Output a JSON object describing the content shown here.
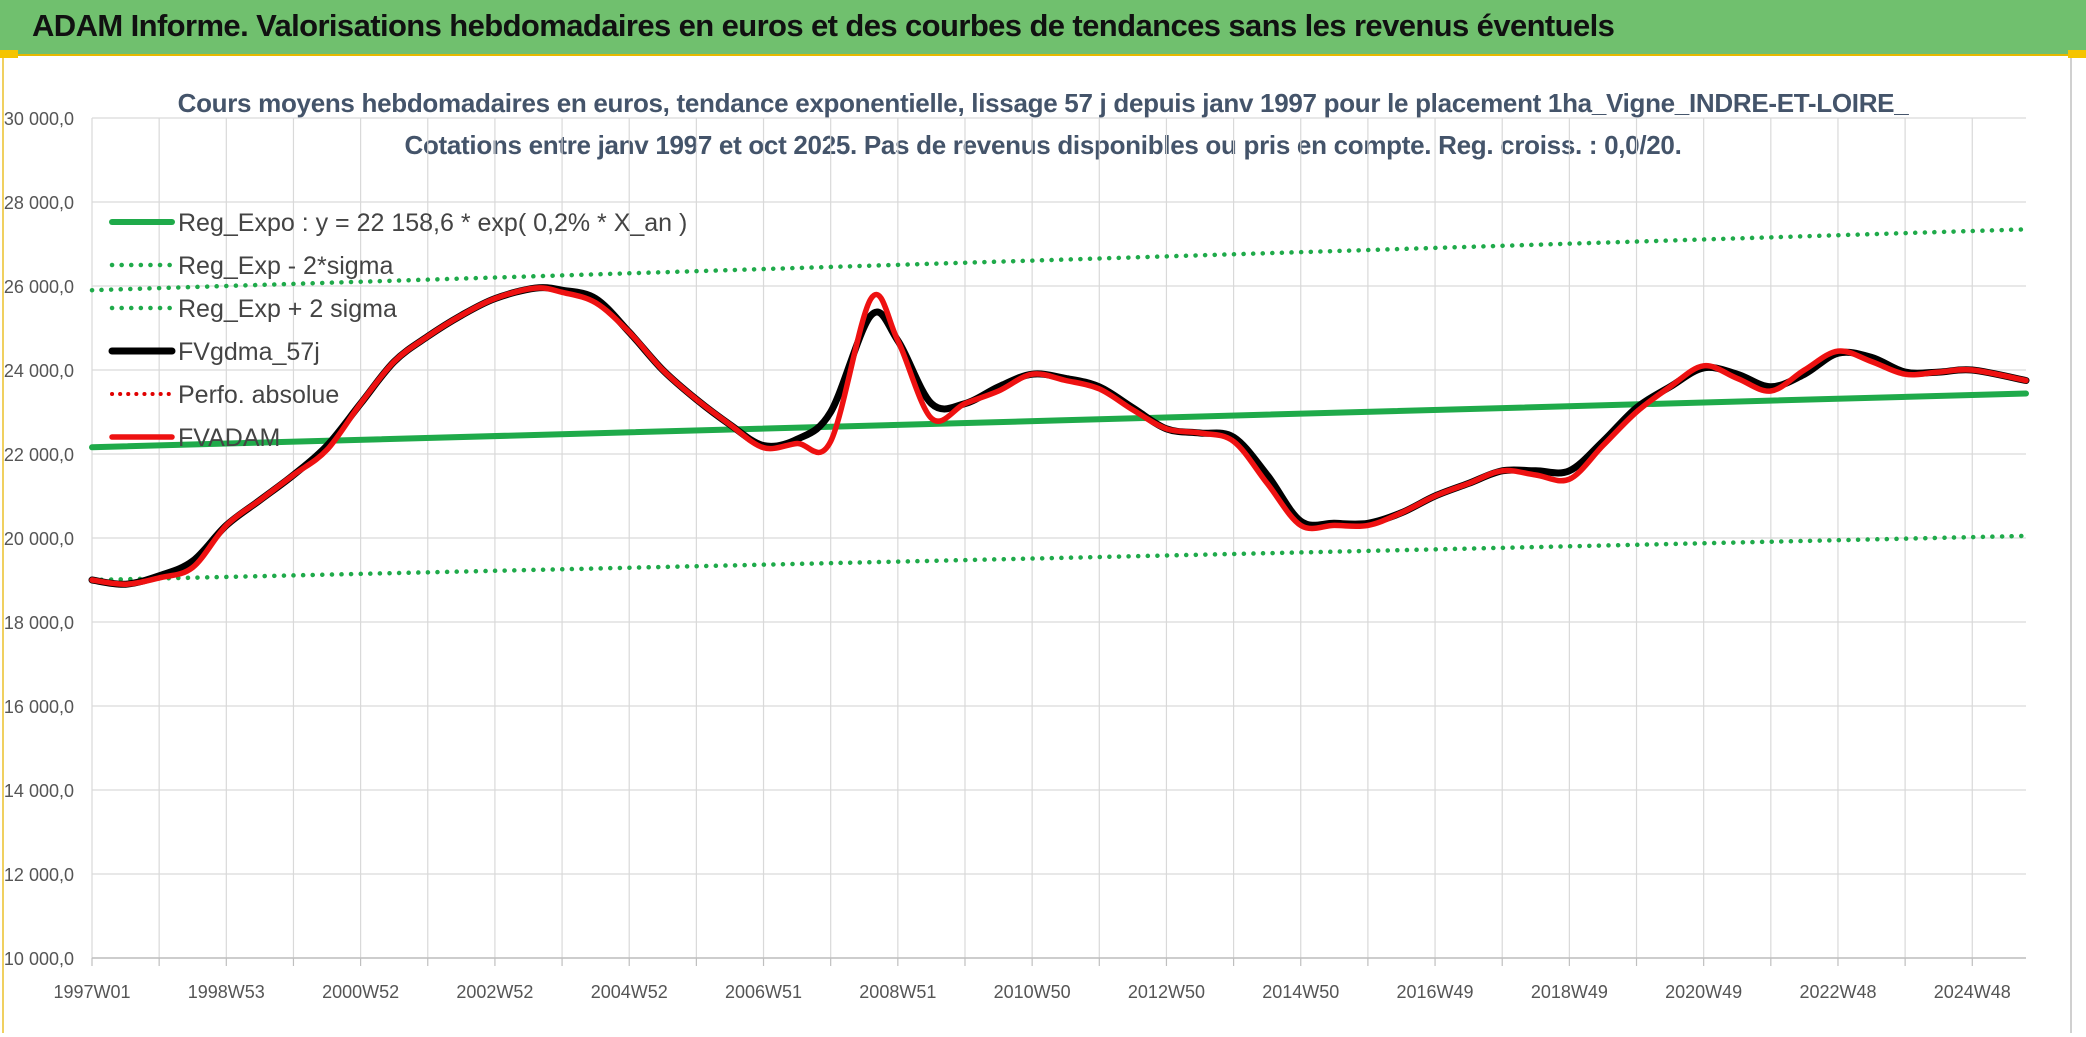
{
  "banner": {
    "title": "ADAM Informe. Valorisations hebdomadaires en euros et des courbes de tendances sans les revenus éventuels"
  },
  "colors": {
    "banner_bg": "#70c06e",
    "reg_expo": "#1faa4a",
    "fvgdma": "#000000",
    "perfo": "#e00000",
    "fvadam": "#ee1111",
    "title_text": "#44546a"
  },
  "chart_data": {
    "type": "line",
    "title": "Cours moyens hebdomadaires en euros, tendance exponentielle, lissage 57 j depuis janv 1997 pour le placement 1ha_Vigne_INDRE-ET-LOIRE_",
    "subtitle": "Cotations entre janv 1997 et oct 2025. Pas de revenus disponibles ou pris en compte. Reg. croiss. : 0,0/20.",
    "xlabel": "",
    "ylabel": "",
    "ylim": [
      10000,
      30000
    ],
    "yticks": [
      "10 000,0",
      "12 000,0",
      "14 000,0",
      "16 000,0",
      "18 000,0",
      "20 000,0",
      "22 000,0",
      "24 000,0",
      "26 000,0",
      "28 000,0",
      "30 000,0"
    ],
    "xlim": [
      1997.0,
      2025.8
    ],
    "xticks": [
      {
        "label": "1997W01",
        "x": 1997.0
      },
      {
        "label": "1998W53",
        "x": 1999.0
      },
      {
        "label": "2000W52",
        "x": 2001.0
      },
      {
        "label": "2002W52",
        "x": 2003.0
      },
      {
        "label": "2004W52",
        "x": 2005.0
      },
      {
        "label": "2006W51",
        "x": 2007.0
      },
      {
        "label": "2008W51",
        "x": 2009.0
      },
      {
        "label": "2010W50",
        "x": 2011.0
      },
      {
        "label": "2012W50",
        "x": 2013.0
      },
      {
        "label": "2014W50",
        "x": 2015.0
      },
      {
        "label": "2016W49",
        "x": 2017.0
      },
      {
        "label": "2018W49",
        "x": 2019.0
      },
      {
        "label": "2020W49",
        "x": 2021.0
      },
      {
        "label": "2022W48",
        "x": 2023.0
      },
      {
        "label": "2024W48",
        "x": 2025.0
      }
    ],
    "grid": true,
    "legend_position": "top-left",
    "series": [
      {
        "key": "reg_expo",
        "name": "Reg_Expo : y = 22 158,6 * exp( 0,2% *  X_an )",
        "style": "solid-thick",
        "x": [
          1997.0,
          2025.8
        ],
        "y": [
          22160,
          23440
        ]
      },
      {
        "key": "reg_minus",
        "name": "Reg_Exp - 2*sigma",
        "style": "dotted",
        "x": [
          1997.0,
          2025.8
        ],
        "y": [
          19000,
          20050
        ]
      },
      {
        "key": "reg_plus",
        "name": "Reg_Exp + 2 sigma",
        "style": "dotted",
        "x": [
          1997.0,
          2025.8
        ],
        "y": [
          25900,
          27350
        ]
      },
      {
        "key": "fvgdma",
        "name": "FVgdma_57j",
        "style": "solid",
        "x": [
          1997.0,
          1997.5,
          1998.0,
          1998.5,
          1999.0,
          1999.5,
          2000.0,
          2000.5,
          2001.0,
          2001.5,
          2002.0,
          2002.5,
          2003.0,
          2003.6,
          2004.0,
          2004.5,
          2005.0,
          2005.5,
          2006.0,
          2006.5,
          2007.0,
          2007.5,
          2008.0,
          2008.6,
          2009.0,
          2009.5,
          2010.0,
          2010.5,
          2011.0,
          2011.5,
          2012.0,
          2012.5,
          2013.0,
          2013.5,
          2014.0,
          2014.5,
          2015.0,
          2015.5,
          2016.0,
          2016.5,
          2017.0,
          2017.5,
          2018.0,
          2018.5,
          2019.0,
          2019.5,
          2020.0,
          2020.5,
          2021.0,
          2021.5,
          2022.0,
          2022.5,
          2023.0,
          2023.5,
          2024.0,
          2024.5,
          2025.0,
          2025.8
        ],
        "y": [
          19000,
          18900,
          19100,
          19450,
          20300,
          20900,
          21500,
          22200,
          23200,
          24200,
          24800,
          25300,
          25700,
          25950,
          25900,
          25700,
          24900,
          24000,
          23300,
          22700,
          22200,
          22350,
          23000,
          25300,
          24700,
          23200,
          23200,
          23600,
          23900,
          23800,
          23600,
          23100,
          22600,
          22500,
          22400,
          21500,
          20400,
          20350,
          20350,
          20600,
          21000,
          21300,
          21600,
          21600,
          21600,
          22300,
          23100,
          23600,
          24050,
          23900,
          23600,
          23900,
          24400,
          24300,
          23950,
          23950,
          24000,
          23750
        ]
      },
      {
        "key": "perfo",
        "name": "Perfo. absolue",
        "style": "dotted",
        "x": [],
        "y": []
      },
      {
        "key": "fvadam",
        "name": "FVADAM",
        "style": "solid-thick",
        "x": [
          1997.0,
          1997.5,
          1998.0,
          1998.5,
          1999.0,
          1999.5,
          2000.0,
          2000.5,
          2001.0,
          2001.5,
          2002.0,
          2002.5,
          2003.0,
          2003.6,
          2004.0,
          2004.5,
          2005.0,
          2005.5,
          2006.0,
          2006.5,
          2007.0,
          2007.5,
          2008.0,
          2008.6,
          2009.0,
          2009.5,
          2010.0,
          2010.5,
          2011.0,
          2011.5,
          2012.0,
          2012.5,
          2013.0,
          2013.5,
          2014.0,
          2014.5,
          2015.0,
          2015.5,
          2016.0,
          2016.5,
          2017.0,
          2017.5,
          2018.0,
          2018.5,
          2019.0,
          2019.5,
          2020.0,
          2020.5,
          2021.0,
          2021.5,
          2022.0,
          2022.5,
          2023.0,
          2023.5,
          2024.0,
          2024.5,
          2025.0,
          2025.8
        ],
        "y": [
          19000,
          18900,
          19050,
          19300,
          20300,
          20900,
          21500,
          22100,
          23200,
          24200,
          24800,
          25300,
          25700,
          25950,
          25850,
          25600,
          24900,
          24000,
          23300,
          22700,
          22150,
          22250,
          22300,
          25700,
          24700,
          22850,
          23200,
          23500,
          23900,
          23750,
          23550,
          23050,
          22600,
          22500,
          22300,
          21300,
          20300,
          20300,
          20300,
          20600,
          21000,
          21300,
          21600,
          21500,
          21400,
          22200,
          23000,
          23600,
          24100,
          23800,
          23500,
          24000,
          24450,
          24200,
          23900,
          23950,
          24000,
          23750
        ]
      }
    ]
  }
}
